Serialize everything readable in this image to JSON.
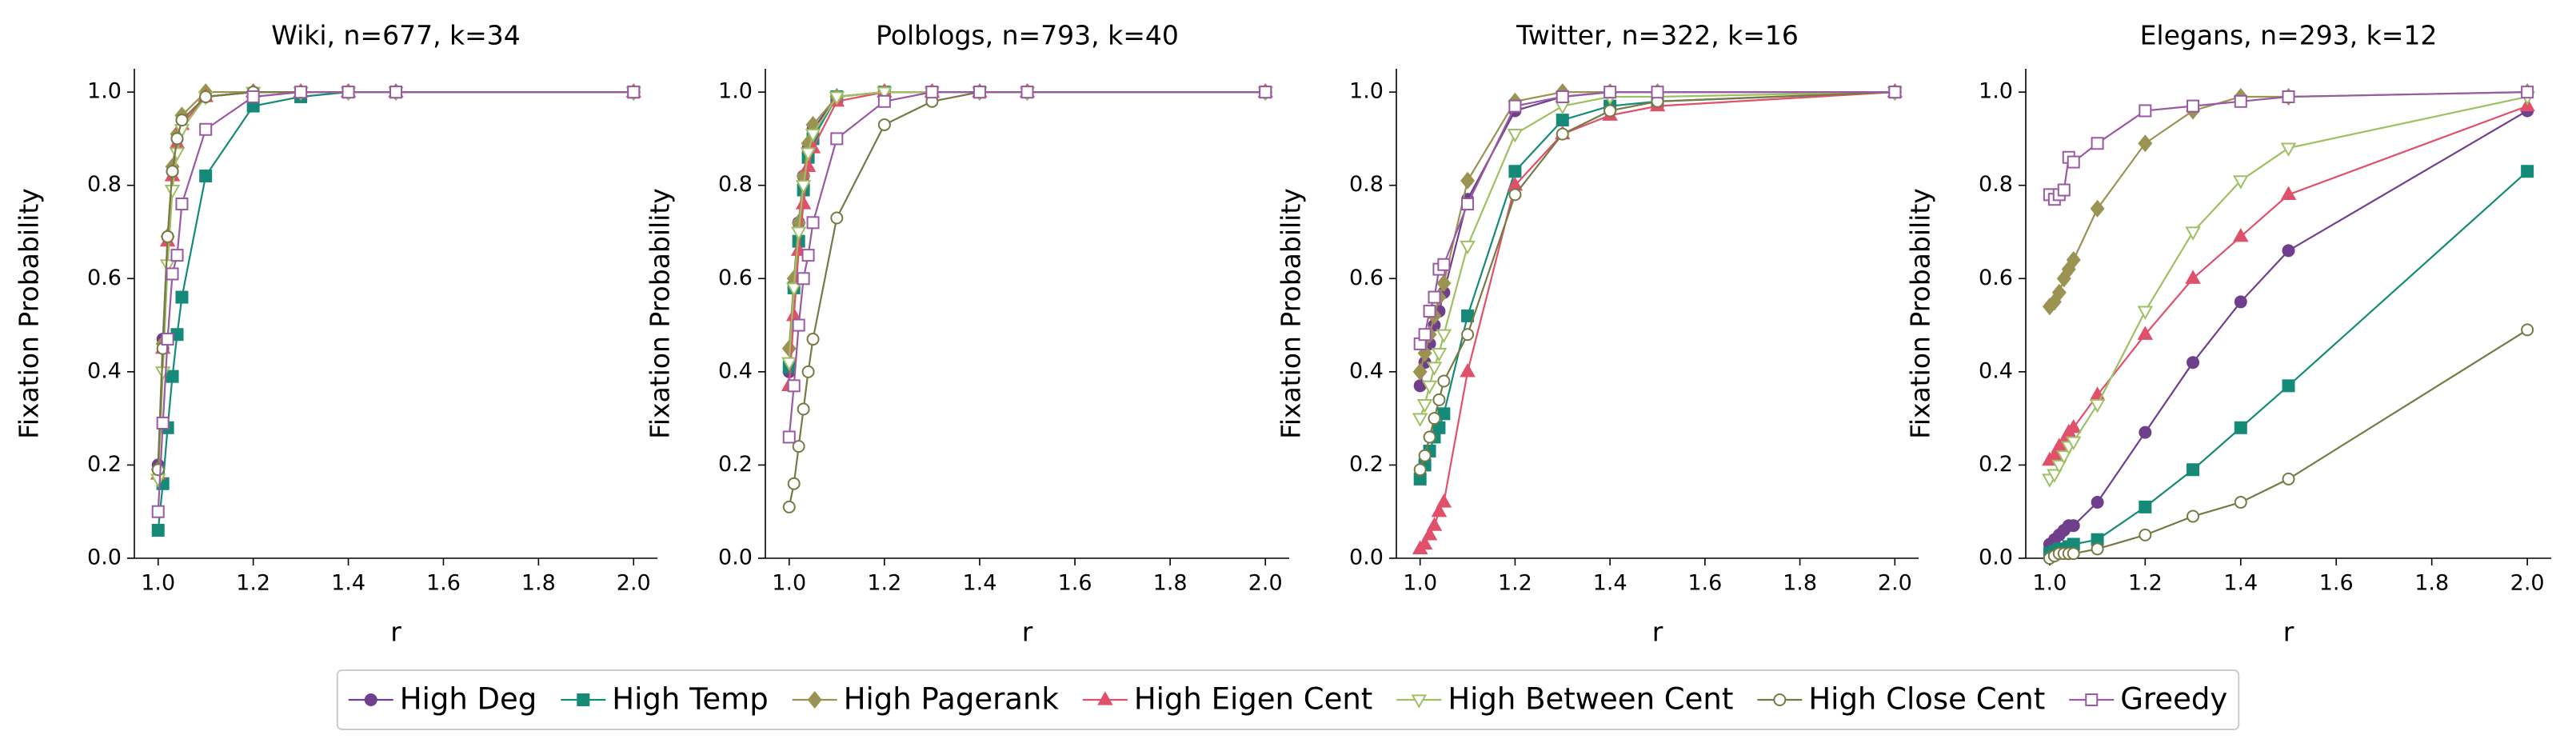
{
  "chart_data": [
    {
      "type": "line",
      "title": "Wiki, n=677, k=34",
      "x_label": "r",
      "y_label": "Fixation Probability",
      "xlim": [
        0.95,
        2.05
      ],
      "ylim": [
        0,
        1.05
      ],
      "xticks": [
        {
          "value": 1,
          "label": "1.0"
        },
        1.2,
        1.4,
        1.6,
        1.8,
        {
          "value": 2,
          "label": "2.0"
        }
      ],
      "yticks": [
        {
          "value": 0,
          "label": "0.0"
        },
        0.2,
        0.4,
        0.6,
        0.8,
        {
          "value": 1,
          "label": "1.0"
        }
      ],
      "x": [
        1.0,
        1.01,
        1.02,
        1.03,
        1.04,
        1.05,
        1.1,
        1.2,
        1.3,
        1.4,
        1.5,
        2.0
      ],
      "series": [
        {
          "name": "High Deg",
          "color": "#6f3f8c",
          "marker": "circle",
          "filled": true,
          "values": [
            0.2,
            0.47,
            0.69,
            0.83,
            0.9,
            0.94,
            0.99,
            1,
            1,
            1,
            1,
            1
          ]
        },
        {
          "name": "High Temp",
          "color": "#168a78",
          "marker": "square",
          "filled": true,
          "values": [
            0.06,
            0.16,
            0.28,
            0.39,
            0.48,
            0.56,
            0.82,
            0.97,
            0.99,
            1,
            1,
            1
          ]
        },
        {
          "name": "High Pagerank",
          "color": "#9b9352",
          "marker": "diamond",
          "filled": true,
          "values": [
            0.19,
            0.46,
            0.69,
            0.84,
            0.91,
            0.95,
            1,
            1,
            1,
            1,
            1,
            1
          ]
        },
        {
          "name": "High Eigen Cent",
          "color": "#e0506b",
          "marker": "triangle-up",
          "filled": true,
          "values": [
            0.18,
            0.45,
            0.68,
            0.82,
            0.89,
            0.93,
            0.99,
            1,
            1,
            1,
            1,
            1
          ]
        },
        {
          "name": "High Between Cent",
          "color": "#9fbf63",
          "marker": "triangle-down",
          "filled": false,
          "values": [
            0.17,
            0.4,
            0.63,
            0.79,
            0.87,
            0.92,
            0.99,
            1,
            1,
            1,
            1,
            1
          ]
        },
        {
          "name": "High Close Cent",
          "color": "#777a45",
          "marker": "circle",
          "filled": false,
          "values": [
            0.19,
            0.45,
            0.69,
            0.83,
            0.9,
            0.94,
            0.99,
            1,
            1,
            1,
            1,
            1
          ]
        },
        {
          "name": "Greedy",
          "color": "#9a5aa3",
          "marker": "square",
          "filled": false,
          "values": [
            0.1,
            0.29,
            0.47,
            0.61,
            0.65,
            0.76,
            0.92,
            0.99,
            1,
            1,
            1,
            1
          ]
        }
      ]
    },
    {
      "type": "line",
      "title": "Polblogs, n=793, k=40",
      "x_label": "r",
      "y_label": "Fixation Probability",
      "xlim": [
        0.95,
        2.05
      ],
      "ylim": [
        0,
        1.05
      ],
      "xticks": [
        {
          "value": 1,
          "label": "1.0"
        },
        1.2,
        1.4,
        1.6,
        1.8,
        {
          "value": 2,
          "label": "2.0"
        }
      ],
      "yticks": [
        {
          "value": 0,
          "label": "0.0"
        },
        0.2,
        0.4,
        0.6,
        0.8,
        {
          "value": 1,
          "label": "1.0"
        }
      ],
      "x": [
        1.0,
        1.01,
        1.02,
        1.03,
        1.04,
        1.05,
        1.1,
        1.2,
        1.3,
        1.4,
        1.5,
        2.0
      ],
      "series": [
        {
          "name": "High Deg",
          "color": "#6f3f8c",
          "marker": "circle",
          "filled": true,
          "values": [
            0.4,
            0.58,
            0.72,
            0.82,
            0.88,
            0.92,
            0.99,
            1,
            1,
            1,
            1,
            1
          ]
        },
        {
          "name": "High Temp",
          "color": "#168a78",
          "marker": "square",
          "filled": true,
          "values": [
            0.41,
            0.58,
            0.68,
            0.79,
            0.86,
            0.9,
            0.99,
            1,
            1,
            1,
            1,
            1
          ]
        },
        {
          "name": "High Pagerank",
          "color": "#9b9352",
          "marker": "diamond",
          "filled": true,
          "values": [
            0.45,
            0.6,
            0.72,
            0.82,
            0.89,
            0.93,
            0.99,
            1,
            1,
            1,
            1,
            1
          ]
        },
        {
          "name": "High Eigen Cent",
          "color": "#e0506b",
          "marker": "triangle-up",
          "filled": true,
          "values": [
            0.37,
            0.52,
            0.66,
            0.76,
            0.84,
            0.88,
            0.98,
            1,
            1,
            1,
            1,
            1
          ]
        },
        {
          "name": "High Between Cent",
          "color": "#9fbf63",
          "marker": "triangle-down",
          "filled": false,
          "values": [
            0.42,
            0.58,
            0.7,
            0.8,
            0.87,
            0.91,
            0.99,
            1,
            1,
            1,
            1,
            1
          ]
        },
        {
          "name": "High Close Cent",
          "color": "#777a45",
          "marker": "circle",
          "filled": false,
          "values": [
            0.11,
            0.16,
            0.24,
            0.32,
            0.4,
            0.47,
            0.73,
            0.93,
            0.98,
            1,
            1,
            1
          ]
        },
        {
          "name": "Greedy",
          "color": "#9a5aa3",
          "marker": "square",
          "filled": false,
          "values": [
            0.26,
            0.37,
            0.5,
            0.6,
            0.65,
            0.72,
            0.9,
            0.98,
            1,
            1,
            1,
            1
          ]
        }
      ]
    },
    {
      "type": "line",
      "title": "Twitter, n=322, k=16",
      "x_label": "r",
      "y_label": "Fixation Probability",
      "xlim": [
        0.95,
        2.05
      ],
      "ylim": [
        0,
        1.05
      ],
      "xticks": [
        {
          "value": 1,
          "label": "1.0"
        },
        1.2,
        1.4,
        1.6,
        1.8,
        {
          "value": 2,
          "label": "2.0"
        }
      ],
      "yticks": [
        {
          "value": 0,
          "label": "0.0"
        },
        0.2,
        0.4,
        0.6,
        0.8,
        {
          "value": 1,
          "label": "1.0"
        }
      ],
      "x": [
        1.0,
        1.01,
        1.02,
        1.03,
        1.04,
        1.05,
        1.1,
        1.2,
        1.3,
        1.4,
        1.5,
        2.0
      ],
      "series": [
        {
          "name": "High Deg",
          "color": "#6f3f8c",
          "marker": "circle",
          "filled": true,
          "values": [
            0.37,
            0.42,
            0.46,
            0.5,
            0.53,
            0.57,
            0.77,
            0.96,
            0.99,
            1,
            1,
            1
          ]
        },
        {
          "name": "High Temp",
          "color": "#168a78",
          "marker": "square",
          "filled": true,
          "values": [
            0.17,
            0.2,
            0.23,
            0.26,
            0.28,
            0.31,
            0.52,
            0.83,
            0.94,
            0.97,
            0.98,
            1
          ]
        },
        {
          "name": "High Pagerank",
          "color": "#9b9352",
          "marker": "diamond",
          "filled": true,
          "values": [
            0.4,
            0.44,
            0.48,
            0.52,
            0.56,
            0.59,
            0.81,
            0.98,
            1,
            1,
            1,
            1
          ]
        },
        {
          "name": "High Eigen Cent",
          "color": "#e0506b",
          "marker": "triangle-up",
          "filled": true,
          "values": [
            0.02,
            0.03,
            0.05,
            0.07,
            0.1,
            0.12,
            0.4,
            0.8,
            0.91,
            0.95,
            0.97,
            1
          ]
        },
        {
          "name": "High Between Cent",
          "color": "#9fbf63",
          "marker": "triangle-down",
          "filled": false,
          "values": [
            0.3,
            0.33,
            0.37,
            0.41,
            0.44,
            0.48,
            0.67,
            0.91,
            0.97,
            0.99,
            0.99,
            1
          ]
        },
        {
          "name": "High Close Cent",
          "color": "#777a45",
          "marker": "circle",
          "filled": false,
          "values": [
            0.19,
            0.22,
            0.26,
            0.3,
            0.34,
            0.38,
            0.48,
            0.78,
            0.91,
            0.96,
            0.98,
            1
          ]
        },
        {
          "name": "Greedy",
          "color": "#9a5aa3",
          "marker": "square",
          "filled": false,
          "values": [
            0.46,
            0.48,
            0.53,
            0.56,
            0.62,
            0.63,
            0.76,
            0.97,
            0.99,
            1,
            1,
            1
          ]
        }
      ]
    },
    {
      "type": "line",
      "title": "Elegans, n=293, k=12",
      "x_label": "r",
      "y_label": "Fixation Probability",
      "xlim": [
        0.95,
        2.05
      ],
      "ylim": [
        0,
        1.05
      ],
      "xticks": [
        {
          "value": 1,
          "label": "1.0"
        },
        1.2,
        1.4,
        1.6,
        1.8,
        {
          "value": 2,
          "label": "2.0"
        }
      ],
      "yticks": [
        {
          "value": 0,
          "label": "0.0"
        },
        0.2,
        0.4,
        0.6,
        0.8,
        {
          "value": 1,
          "label": "1.0"
        }
      ],
      "x": [
        1.0,
        1.01,
        1.02,
        1.03,
        1.04,
        1.05,
        1.1,
        1.2,
        1.3,
        1.4,
        1.5,
        2.0
      ],
      "series": [
        {
          "name": "High Deg",
          "color": "#6f3f8c",
          "marker": "circle",
          "filled": true,
          "values": [
            0.03,
            0.04,
            0.05,
            0.06,
            0.07,
            0.07,
            0.12,
            0.27,
            0.42,
            0.55,
            0.66,
            0.96
          ]
        },
        {
          "name": "High Temp",
          "color": "#168a78",
          "marker": "square",
          "filled": true,
          "values": [
            0.01,
            0.015,
            0.02,
            0.02,
            0.025,
            0.03,
            0.04,
            0.11,
            0.19,
            0.28,
            0.37,
            0.83
          ]
        },
        {
          "name": "High Pagerank",
          "color": "#9b9352",
          "marker": "diamond",
          "filled": true,
          "values": [
            0.54,
            0.55,
            0.57,
            0.6,
            0.62,
            0.64,
            0.75,
            0.89,
            0.96,
            0.99,
            0.99,
            1
          ]
        },
        {
          "name": "High Eigen Cent",
          "color": "#e0506b",
          "marker": "triangle-up",
          "filled": true,
          "values": [
            0.21,
            0.22,
            0.24,
            0.25,
            0.27,
            0.28,
            0.35,
            0.48,
            0.6,
            0.69,
            0.78,
            0.97
          ]
        },
        {
          "name": "High Between Cent",
          "color": "#9fbf63",
          "marker": "triangle-down",
          "filled": false,
          "values": [
            0.17,
            0.18,
            0.2,
            0.22,
            0.24,
            0.25,
            0.33,
            0.53,
            0.7,
            0.81,
            0.88,
            0.99
          ]
        },
        {
          "name": "High Close Cent",
          "color": "#777a45",
          "marker": "circle",
          "filled": false,
          "values": [
            0,
            0.005,
            0.01,
            0.01,
            0.01,
            0.01,
            0.02,
            0.05,
            0.09,
            0.12,
            0.17,
            0.49
          ]
        },
        {
          "name": "Greedy",
          "color": "#9a5aa3",
          "marker": "square",
          "filled": false,
          "values": [
            0.78,
            0.77,
            0.78,
            0.79,
            0.86,
            0.85,
            0.89,
            0.96,
            0.97,
            0.98,
            0.99,
            1
          ]
        }
      ]
    }
  ]
}
